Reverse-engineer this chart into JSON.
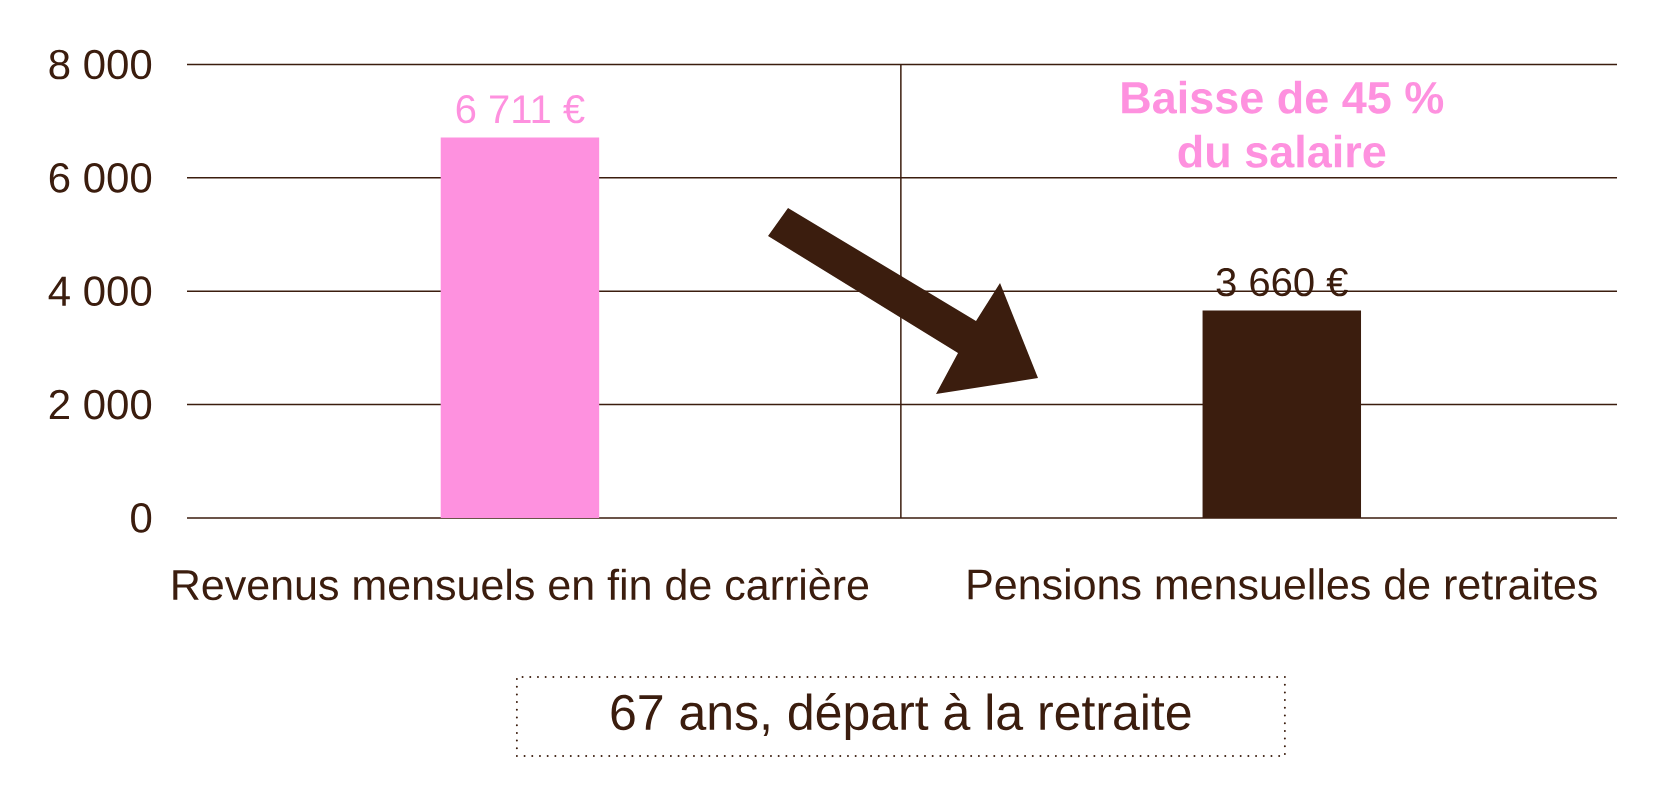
{
  "chart_data": {
    "type": "bar",
    "categories": [
      "Revenus mensuels en fin de carrière",
      "Pensions mensuelles de retraites"
    ],
    "values": [
      6711,
      3660
    ],
    "colors": [
      "#fe91df",
      "#3b1d0e"
    ],
    "value_labels": [
      "6 711 €",
      "3 660 €"
    ],
    "ylim": [
      0,
      8000
    ],
    "yticks": [
      0,
      {
        "value": 2000,
        "label": "2 000"
      },
      {
        "value": 4000,
        "label": "4 000"
      },
      {
        "value": 6000,
        "label": "6 000"
      },
      {
        "value": 8000,
        "label": "8 000"
      }
    ],
    "grid": "y",
    "annotations": [
      "Baisse de 45 % du salaire",
      "67 ans, départ à la retraite"
    ]
  }
}
